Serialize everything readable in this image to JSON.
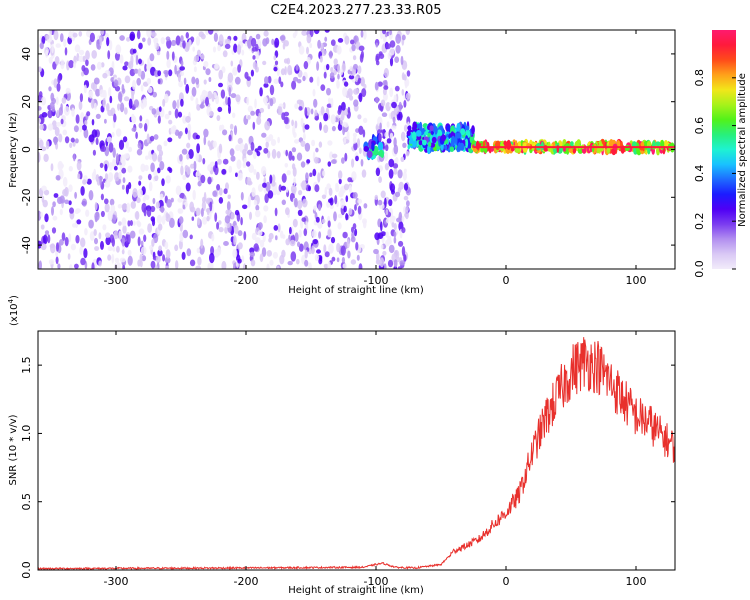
{
  "figure_title": "C2E4.2023.277.23.33.R05",
  "colors": {
    "snr_line": "#e8302c",
    "frame": "#000000",
    "colorbar_stops": [
      "#f2ecfa",
      "#d9c8f5",
      "#b28ff0",
      "#7b3cf0",
      "#4f00f5",
      "#1c1cff",
      "#1e6bff",
      "#19c2ff",
      "#1ef2d2",
      "#28f07a",
      "#52f21a",
      "#a8f21a",
      "#f2e61a",
      "#ffa01a",
      "#ff4b1a",
      "#ff1a3c",
      "#ff1a6e"
    ]
  },
  "chart_data": [
    {
      "type": "heatmap",
      "title": "C2E4.2023.277.23.33.R05",
      "xlabel": "Height of straight line (km)",
      "ylabel": "Frequency (Hz)",
      "xlim": [
        -360,
        130
      ],
      "ylim": [
        -50,
        50
      ],
      "x_ticks": [
        -300,
        -200,
        -100,
        0,
        100
      ],
      "y_ticks": [
        -40,
        -20,
        0,
        20,
        40
      ],
      "colorbar": {
        "label": "Normalized spectral amplitude",
        "range": [
          0,
          1
        ],
        "ticks": [
          "0.0",
          "0.2",
          "0.4",
          "0.6",
          "0.8"
        ],
        "tick_values": [
          0,
          0.2,
          0.4,
          0.6,
          0.8
        ]
      },
      "regions": [
        {
          "x_range": [
            -360,
            -108
          ],
          "freq_range": [
            -50,
            50
          ],
          "amplitude": "0.0-0.2 (scattered noise)"
        },
        {
          "x_range": [
            -100,
            -75
          ],
          "freq_range": [
            -50,
            50
          ],
          "amplitude": "0.0-0.2 (scattered noise)"
        },
        {
          "x_range": [
            -108,
            -95
          ],
          "freq_range": [
            -3,
            5
          ],
          "amplitude": "0.2-0.5"
        },
        {
          "x_range": [
            -75,
            -25
          ],
          "freq_range": [
            0,
            10
          ],
          "amplitude": "0.2-0.6"
        },
        {
          "x_range": [
            -25,
            130
          ],
          "freq_range": [
            0,
            3
          ],
          "amplitude": "0.7-1.0 (peak near 1 Hz)"
        }
      ]
    },
    {
      "type": "line",
      "xlabel": "Height of straight line (km)",
      "ylabel": "SNR (10 * v/v)",
      "y_multiplier_label": "(x10",
      "y_multiplier_exp": "4",
      "y_multiplier_close": ")",
      "xlim": [
        -360,
        130
      ],
      "ylim": [
        0,
        17500
      ],
      "x_ticks": [
        -300,
        -200,
        -100,
        0,
        100
      ],
      "y_ticks": [
        0,
        5000,
        10000,
        15000
      ],
      "y_tick_labels": [
        "0.0",
        "0.5",
        "1.0",
        "1.5"
      ],
      "series": [
        {
          "x": [
            -360,
            -300,
            -200,
            -110,
            -95,
            -85,
            -70,
            -50,
            -40,
            -30,
            -20,
            -10,
            0,
            10,
            20,
            30,
            40,
            50,
            60,
            70,
            80,
            90,
            100,
            110,
            120,
            130
          ],
          "y": [
            100,
            120,
            150,
            200,
            500,
            200,
            150,
            400,
            1400,
            1800,
            2300,
            3300,
            4200,
            5500,
            8500,
            11000,
            12800,
            14500,
            15300,
            15000,
            13800,
            12500,
            11300,
            10800,
            9800,
            9000
          ]
        }
      ]
    }
  ]
}
